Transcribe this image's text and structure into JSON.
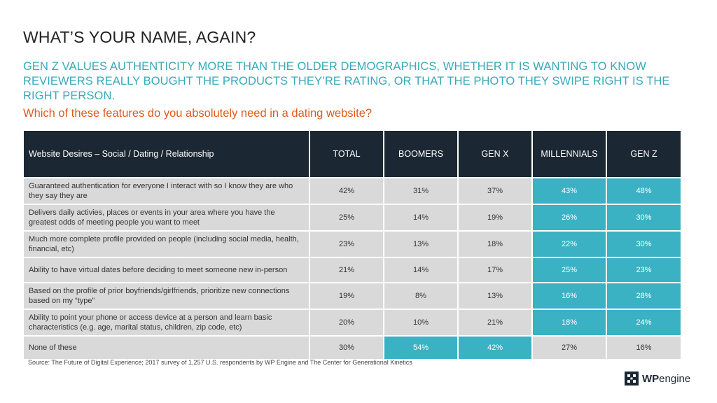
{
  "header": {
    "title": "WHAT’S YOUR NAME, AGAIN?",
    "subtitle": "GEN Z VALUES AUTHENTICITY MORE THAN THE OLDER DEMOGRAPHICS, WHETHER IT IS WANTING TO KNOW REVIEWERS REALLY BOUGHT THE PRODUCTS THEY’RE RATING, OR THAT THE PHOTO THEY SWIPE RIGHT IS THE RIGHT PERSON.",
    "question": "Which of these features do you absolutely need in a dating website?"
  },
  "colors": {
    "header_bg": "#1b2833",
    "cell_bg": "#d9d9d9",
    "highlight": "#3ab2c4",
    "subtitle": "#37a9b8",
    "question": "#e05a1c"
  },
  "chart_data": {
    "type": "table",
    "columns": [
      "Website Desires – Social / Dating / Relationship",
      "TOTAL",
      "BOOMERS",
      "GEN X",
      "MILLENNIALS",
      "GEN Z"
    ],
    "rows": [
      {
        "label": "Guaranteed authentication for everyone I interact with so I know they are who they say they are",
        "values": [
          "42%",
          "31%",
          "37%",
          "43%",
          "48%"
        ],
        "highlight": [
          false,
          false,
          false,
          true,
          true
        ]
      },
      {
        "label": "Delivers daily activies, places or events in your area where you have the greatest odds of meeting people you want to meet",
        "values": [
          "25%",
          "14%",
          "19%",
          "26%",
          "30%"
        ],
        "highlight": [
          false,
          false,
          false,
          true,
          true
        ]
      },
      {
        "label": "Much more complete profile provided on people (including social media, health, financial, etc)",
        "values": [
          "23%",
          "13%",
          "18%",
          "22%",
          "30%"
        ],
        "highlight": [
          false,
          false,
          false,
          true,
          true
        ]
      },
      {
        "label": "Ability to have virtual dates before deciding to meet someone new in-person",
        "values": [
          "21%",
          "14%",
          "17%",
          "25%",
          "23%"
        ],
        "highlight": [
          false,
          false,
          false,
          true,
          true
        ]
      },
      {
        "label": "Based on the profile of prior boyfriends/girlfriends, prioritize new connections based on my “type”",
        "values": [
          "19%",
          "8%",
          "13%",
          "16%",
          "28%"
        ],
        "highlight": [
          false,
          false,
          false,
          true,
          true
        ]
      },
      {
        "label": "Ability to point your phone or access device at a person and learn basic characteristics (e.g. age, marital status, children, zip code, etc)",
        "values": [
          "20%",
          "10%",
          "21%",
          "18%",
          "24%"
        ],
        "highlight": [
          false,
          false,
          false,
          true,
          true
        ]
      },
      {
        "label": "None of these",
        "values": [
          "30%",
          "54%",
          "42%",
          "27%",
          "16%"
        ],
        "highlight": [
          false,
          true,
          true,
          false,
          false
        ]
      }
    ]
  },
  "footer": {
    "source": "Source: The Future of Digital Experience; 2017 survey of 1,257 U.S. respondents by WP Engine and The Center for Generational Kinetics",
    "logo_wp": "WP",
    "logo_engine": "engine",
    "logo_mark": "logo-mark"
  }
}
